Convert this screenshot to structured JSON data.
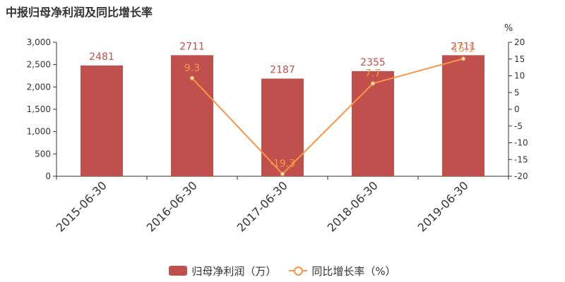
{
  "chart_data": {
    "type": "bar",
    "title": "中报归母净利润及同比增长率",
    "categories": [
      "2015-06-30",
      "2016-06-30",
      "2017-06-30",
      "2018-06-30",
      "2019-06-30"
    ],
    "series": [
      {
        "name": "归母净利润（万）",
        "type": "bar",
        "axis": "left",
        "values": [
          2481,
          2711,
          2187,
          2355,
          2711
        ],
        "labels": [
          "2481",
          "2711",
          "2187",
          "2355",
          "2711"
        ],
        "color": "#c0504d"
      },
      {
        "name": "同比增长率（%）",
        "type": "line",
        "axis": "right",
        "values": [
          null,
          9.3,
          -19.3,
          7.7,
          15.1
        ],
        "labels": [
          "",
          "9.3",
          "-19.3",
          "7.7",
          "15.1"
        ],
        "color": "#f79646"
      }
    ],
    "y_left": {
      "ylim": [
        0,
        3000
      ],
      "ticks": [
        0,
        500,
        1000,
        1500,
        2000,
        2500,
        3000
      ],
      "tick_labels": [
        "0",
        "500",
        "1,000",
        "1,500",
        "2,000",
        "2,500",
        "3,000"
      ]
    },
    "y_right": {
      "label": "%",
      "ylim": [
        -20,
        20
      ],
      "ticks": [
        -20,
        -15,
        -10,
        -5,
        0,
        5,
        10,
        15,
        20
      ],
      "tick_labels": [
        "-20",
        "-15",
        "-10",
        "-5",
        "0",
        "5",
        "10",
        "15",
        "20"
      ]
    },
    "grid": false,
    "legend_position": "bottom"
  }
}
